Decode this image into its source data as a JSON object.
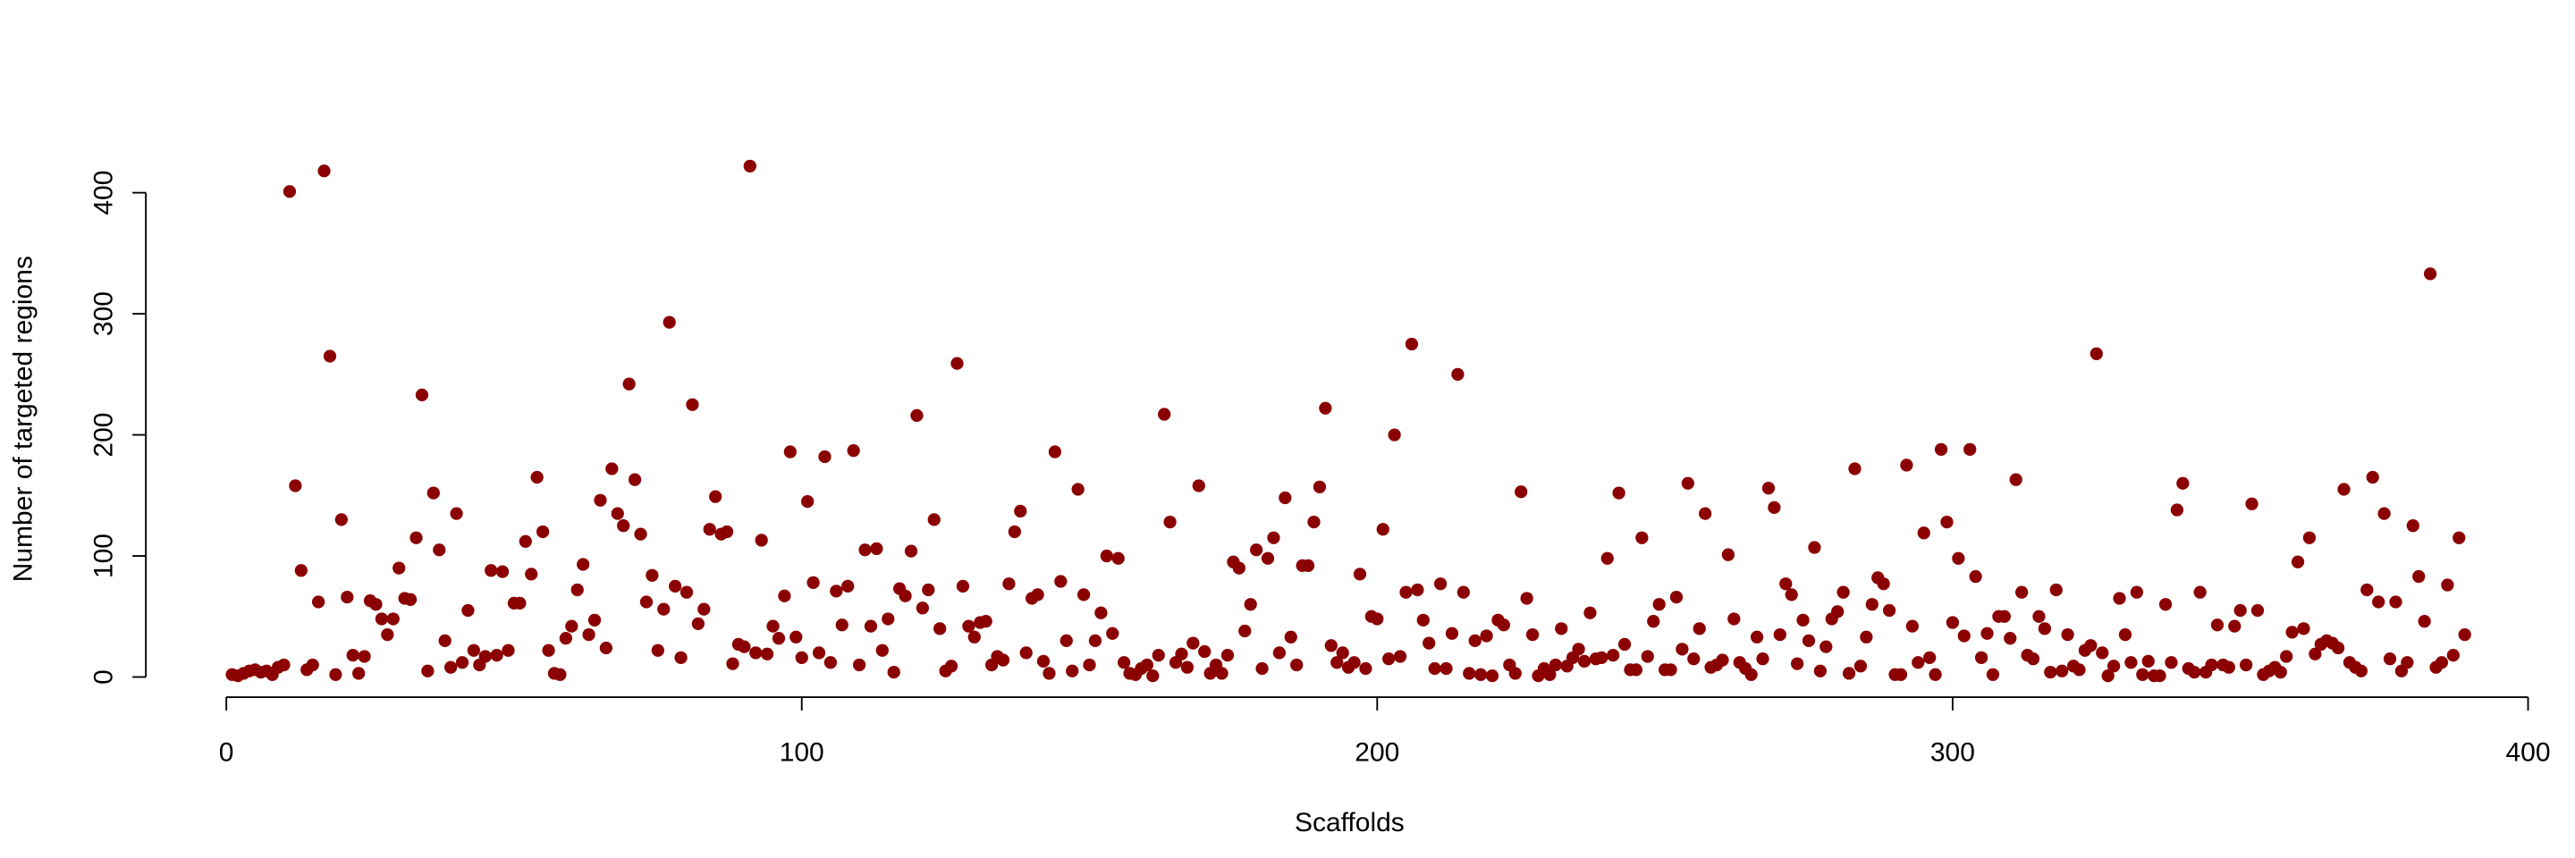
{
  "chart_data": {
    "type": "scatter",
    "x_label": "Scaffolds",
    "y_label": "Number of targeted regions",
    "color": "#8b0000",
    "xlim": [
      0,
      400
    ],
    "xticks": [
      0,
      100,
      200,
      300,
      400
    ],
    "ylim": [
      0,
      400
    ],
    "yticks": [
      0,
      100,
      200,
      300,
      400
    ],
    "x": [
      1,
      2,
      3,
      4,
      5,
      6,
      7,
      8,
      9,
      10,
      11,
      12,
      13,
      14,
      15,
      16,
      17,
      18,
      19,
      20,
      21,
      22,
      23,
      24,
      25,
      26,
      27,
      28,
      29,
      30,
      31,
      32,
      33,
      34,
      35,
      36,
      37,
      38,
      39,
      40,
      41,
      42,
      43,
      44,
      45,
      46,
      47,
      48,
      49,
      50,
      51,
      52,
      53,
      54,
      55,
      56,
      57,
      58,
      59,
      60,
      61,
      62,
      63,
      64,
      65,
      66,
      67,
      68,
      69,
      70,
      71,
      72,
      73,
      74,
      75,
      76,
      77,
      78,
      79,
      80,
      81,
      82,
      83,
      84,
      85,
      86,
      87,
      88,
      89,
      90,
      91,
      92,
      93,
      94,
      95,
      96,
      97,
      98,
      99,
      100,
      101,
      102,
      103,
      104,
      105,
      106,
      107,
      108,
      109,
      110,
      111,
      112,
      113,
      114,
      115,
      116,
      117,
      118,
      119,
      120,
      121,
      122,
      123,
      124,
      125,
      126,
      127,
      128,
      129,
      130,
      131,
      132,
      133,
      134,
      135,
      136,
      137,
      138,
      139,
      140,
      141,
      142,
      143,
      144,
      145,
      146,
      147,
      148,
      149,
      150,
      151,
      152,
      153,
      154,
      155,
      156,
      157,
      158,
      159,
      160,
      161,
      162,
      163,
      164,
      165,
      166,
      167,
      168,
      169,
      170,
      171,
      172,
      173,
      174,
      175,
      176,
      177,
      178,
      179,
      180,
      181,
      182,
      183,
      184,
      185,
      186,
      187,
      188,
      189,
      190,
      191,
      192,
      193,
      194,
      195,
      196,
      197,
      198,
      199,
      200,
      201,
      202,
      203,
      204,
      205,
      206,
      207,
      208,
      209,
      210,
      211,
      212,
      213,
      214,
      215,
      216,
      217,
      218,
      219,
      220,
      221,
      222,
      223,
      224,
      225,
      226,
      227,
      228,
      229,
      230,
      231,
      232,
      233,
      234,
      235,
      236,
      237,
      238,
      239,
      240,
      241,
      242,
      243,
      244,
      245,
      246,
      247,
      248,
      249,
      250,
      251,
      252,
      253,
      254,
      255,
      256,
      257,
      258,
      259,
      260,
      261,
      262,
      263,
      264,
      265,
      266,
      267,
      268,
      269,
      270,
      271,
      272,
      273,
      274,
      275,
      276,
      277,
      278,
      279,
      280,
      281,
      282,
      283,
      284,
      285,
      286,
      287,
      288,
      289,
      290,
      291,
      292,
      293,
      294,
      295,
      296,
      297,
      298,
      299,
      300,
      301,
      302,
      303,
      304,
      305,
      306,
      307,
      308,
      309,
      310,
      311,
      312,
      313,
      314,
      315,
      316,
      317,
      318,
      319,
      320,
      321,
      322,
      323,
      324,
      325,
      326,
      327,
      328,
      329,
      330,
      331,
      332,
      333,
      334,
      335,
      336,
      337,
      338,
      339,
      340,
      341,
      342,
      343,
      344,
      345,
      346,
      347,
      348,
      349,
      350,
      351,
      352,
      353,
      354,
      355,
      356,
      357,
      358,
      359,
      360,
      361,
      362,
      363,
      364,
      365,
      366,
      367,
      368,
      369,
      370,
      371,
      372,
      373,
      374,
      375,
      376,
      377,
      378,
      379,
      380,
      381,
      382,
      383,
      384,
      385,
      386,
      387,
      388,
      389
    ],
    "values": [
      2,
      1,
      3,
      5,
      6,
      4,
      5,
      2,
      8,
      10,
      401,
      158,
      88,
      6,
      10,
      62,
      418,
      265,
      2,
      130,
      66,
      18,
      3,
      17,
      63,
      60,
      48,
      35,
      48,
      90,
      65,
      64,
      115,
      233,
      5,
      152,
      105,
      30,
      8,
      135,
      12,
      55,
      22,
      10,
      17,
      88,
      18,
      87,
      22,
      61,
      61,
      112,
      85,
      165,
      120,
      22,
      3,
      2,
      32,
      42,
      72,
      93,
      35,
      47,
      146,
      24,
      172,
      135,
      125,
      242,
      163,
      118,
      62,
      84,
      22,
      56,
      293,
      75,
      16,
      70,
      225,
      44,
      56,
      122,
      149,
      118,
      120,
      11,
      27,
      25,
      422,
      20,
      113,
      19,
      42,
      32,
      67,
      186,
      33,
      16,
      145,
      78,
      20,
      182,
      12,
      71,
      43,
      75,
      187,
      10,
      105,
      42,
      106,
      22,
      48,
      4,
      73,
      67,
      104,
      216,
      57,
      72,
      130,
      40,
      5,
      9,
      259,
      75,
      42,
      33,
      45,
      46,
      10,
      17,
      14,
      77,
      120,
      137,
      20,
      65,
      68,
      13,
      3,
      186,
      79,
      30,
      5,
      155,
      68,
      10,
      30,
      53,
      100,
      36,
      98,
      12,
      3,
      2,
      7,
      10,
      1,
      18,
      217,
      128,
      12,
      19,
      8,
      28,
      158,
      21,
      3,
      10,
      3,
      18,
      95,
      90,
      38,
      60,
      105,
      7,
      98,
      115,
      20,
      148,
      33,
      10,
      92,
      92,
      128,
      157,
      222,
      26,
      12,
      20,
      8,
      12,
      85,
      7,
      50,
      48,
      122,
      15,
      200,
      17,
      70,
      275,
      72,
      47,
      28,
      7,
      77,
      7,
      36,
      250,
      70,
      3,
      30,
      2,
      34,
      1,
      47,
      43,
      10,
      3,
      153,
      65,
      35,
      1,
      7,
      2,
      10,
      40,
      9,
      16,
      23,
      13,
      53,
      15,
      16,
      98,
      18,
      152,
      27,
      6,
      6,
      115,
      17,
      46,
      60,
      6,
      6,
      66,
      23,
      160,
      15,
      40,
      135,
      8,
      10,
      14,
      101,
      48,
      12,
      7,
      2,
      33,
      15,
      156,
      140,
      35,
      77,
      68,
      11,
      47,
      30,
      107,
      5,
      25,
      48,
      54,
      70,
      3,
      172,
      9,
      33,
      60,
      82,
      77,
      55,
      2,
      2,
      175,
      42,
      12,
      119,
      16,
      2,
      188,
      128,
      45,
      98,
      34,
      188,
      83,
      16,
      36,
      2,
      50,
      50,
      32,
      163,
      70,
      18,
      15,
      50,
      40,
      4,
      72,
      5,
      35,
      9,
      6,
      22,
      26,
      267,
      20,
      1,
      9,
      65,
      35,
      12,
      70,
      2,
      13,
      1,
      1,
      60,
      12,
      138,
      160,
      7,
      4,
      70,
      4,
      10,
      43,
      10,
      8,
      42,
      55,
      10,
      143,
      55,
      2,
      5,
      8,
      4,
      17,
      37,
      95,
      40,
      115,
      19,
      27,
      30,
      28,
      24,
      155,
      12,
      8,
      5,
      72,
      165,
      62,
      135,
      15,
      62,
      5,
      12,
      125,
      83,
      46,
      333,
      8,
      12,
      76,
      18,
      115,
      35
    ]
  }
}
